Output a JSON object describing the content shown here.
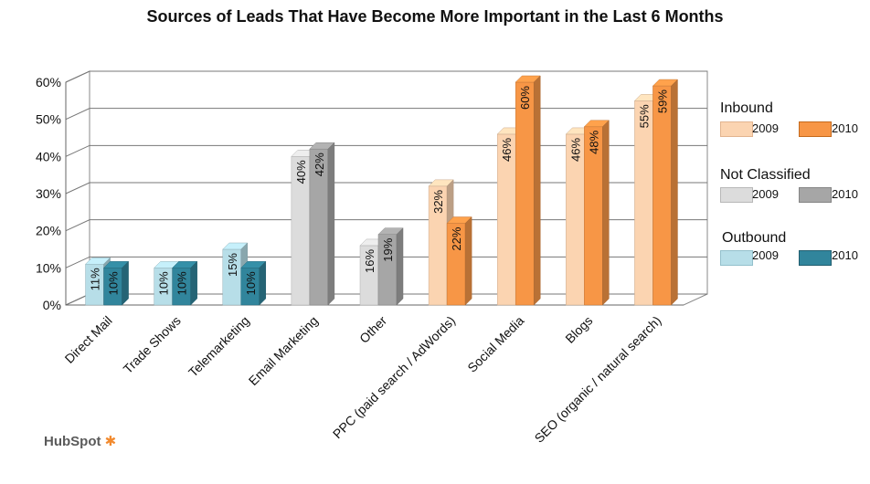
{
  "chart_data": {
    "type": "bar",
    "title": "Sources of Leads That Have Become More Important in the Last 6 Months",
    "ylim": [
      0,
      60
    ],
    "yticks": [
      "0%",
      "10%",
      "20%",
      "30%",
      "40%",
      "50%",
      "60%"
    ],
    "grid": true,
    "legend_position": "right",
    "categories": [
      "Direct Mail",
      "Trade Shows",
      "Telemarketing",
      "Email Marketing",
      "Other",
      "PPC (paid search / AdWords)",
      "Social Media",
      "Blogs",
      "SEO (organic / natural search)"
    ],
    "groups": [
      "Outbound",
      "Outbound",
      "Outbound",
      "Not Classified",
      "Not Classified",
      "Inbound",
      "Inbound",
      "Inbound",
      "Inbound"
    ],
    "series": [
      {
        "name": "2009",
        "values": [
          11,
          10,
          15,
          40,
          16,
          32,
          46,
          46,
          55
        ]
      },
      {
        "name": "2010",
        "values": [
          10,
          10,
          10,
          42,
          19,
          22,
          60,
          48,
          59
        ]
      }
    ],
    "data_labels": [
      [
        "11%",
        "10%",
        "15%",
        "40%",
        "16%",
        "32%",
        "46%",
        "46%",
        "55%"
      ],
      [
        "10%",
        "10%",
        "10%",
        "42%",
        "19%",
        "22%",
        "60%",
        "48%",
        "59%"
      ]
    ],
    "colors": {
      "Inbound": {
        "2009": "#fbd4b1",
        "2010": "#f79646"
      },
      "Not Classified": {
        "2009": "#dcdcdc",
        "2010": "#a6a6a6"
      },
      "Outbound": {
        "2009": "#b7dee8",
        "2010": "#31859c"
      }
    }
  },
  "legend": {
    "inbound": {
      "label": "Inbound",
      "y1": "2009",
      "y2": "2010"
    },
    "not_classified": {
      "label": "Not Classified",
      "y1": "2009",
      "y2": "2010"
    },
    "outbound": {
      "label": "Outbound",
      "y1": "2009",
      "y2": "2010"
    }
  },
  "brand": {
    "text": "HubSpot"
  }
}
